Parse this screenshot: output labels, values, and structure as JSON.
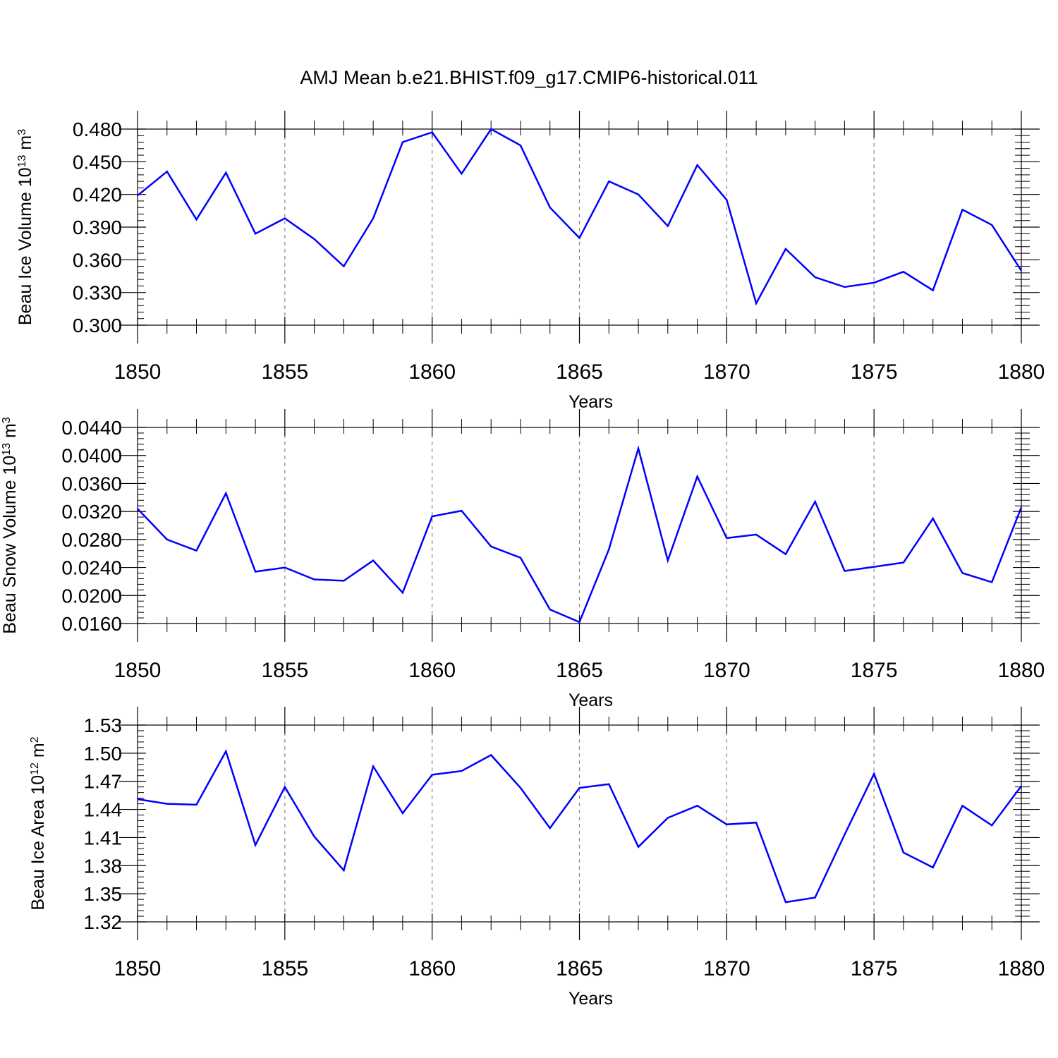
{
  "title": "AMJ Mean b.e21.BHIST.f09_g17.CMIP6-historical.011",
  "line_color": "#0000ff",
  "chart_data": [
    {
      "type": "line",
      "ylabel": "Beau Ice Volume 10",
      "ylabel_exp": "13",
      "ylabel_unit": " m",
      "ylabel_unit_exp": "3",
      "xlabel": "Years",
      "xlim": [
        1850,
        1880
      ],
      "ylim": [
        0.3,
        0.48
      ],
      "y_ticks": [
        "0.300",
        "0.330",
        "0.360",
        "0.390",
        "0.420",
        "0.450",
        "0.480"
      ],
      "x_ticks": [
        "1850",
        "1855",
        "1860",
        "1865",
        "1870",
        "1875",
        "1880"
      ],
      "x": [
        1850,
        1851,
        1852,
        1853,
        1854,
        1855,
        1856,
        1857,
        1858,
        1859,
        1860,
        1861,
        1862,
        1863,
        1864,
        1865,
        1866,
        1867,
        1868,
        1869,
        1870,
        1871,
        1872,
        1873,
        1874,
        1875,
        1876,
        1877,
        1878,
        1879,
        1880
      ],
      "series": [
        {
          "values": [
            0.419,
            0.441,
            0.397,
            0.44,
            0.384,
            0.398,
            0.379,
            0.354,
            0.398,
            0.468,
            0.477,
            0.439,
            0.48,
            0.465,
            0.408,
            0.38,
            0.432,
            0.42,
            0.391,
            0.447,
            0.415,
            0.32,
            0.37,
            0.344,
            0.335,
            0.339,
            0.349,
            0.332,
            0.406,
            0.392,
            0.35
          ]
        }
      ]
    },
    {
      "type": "line",
      "ylabel": "Beau Snow Volume 10",
      "ylabel_exp": "13",
      "ylabel_unit": " m",
      "ylabel_unit_exp": "3",
      "xlabel": "Years",
      "xlim": [
        1850,
        1880
      ],
      "ylim": [
        0.016,
        0.044
      ],
      "y_ticks": [
        "0.0160",
        "0.0200",
        "0.0240",
        "0.0280",
        "0.0320",
        "0.0360",
        "0.0400",
        "0.0440"
      ],
      "x_ticks": [
        "1850",
        "1855",
        "1860",
        "1865",
        "1870",
        "1875",
        "1880"
      ],
      "x": [
        1850,
        1851,
        1852,
        1853,
        1854,
        1855,
        1856,
        1857,
        1858,
        1859,
        1860,
        1861,
        1862,
        1863,
        1864,
        1865,
        1866,
        1867,
        1868,
        1869,
        1870,
        1871,
        1872,
        1873,
        1874,
        1875,
        1876,
        1877,
        1878,
        1879,
        1880
      ],
      "series": [
        {
          "values": [
            0.0324,
            0.028,
            0.0264,
            0.0346,
            0.0234,
            0.024,
            0.0223,
            0.0221,
            0.025,
            0.0204,
            0.0313,
            0.0321,
            0.027,
            0.0254,
            0.018,
            0.0162,
            0.0266,
            0.041,
            0.025,
            0.037,
            0.0282,
            0.0287,
            0.0259,
            0.0334,
            0.0235,
            0.0241,
            0.0247,
            0.031,
            0.0232,
            0.0219,
            0.0326
          ]
        }
      ]
    },
    {
      "type": "line",
      "ylabel": "Beau Ice Area 10",
      "ylabel_exp": "12",
      "ylabel_unit": " m",
      "ylabel_unit_exp": "2",
      "xlabel": "Years",
      "xlim": [
        1850,
        1880
      ],
      "ylim": [
        1.32,
        1.53
      ],
      "y_ticks": [
        "1.32",
        "1.35",
        "1.38",
        "1.41",
        "1.44",
        "1.47",
        "1.50",
        "1.53"
      ],
      "x_ticks": [
        "1850",
        "1855",
        "1860",
        "1865",
        "1870",
        "1875",
        "1880"
      ],
      "x": [
        1850,
        1851,
        1852,
        1853,
        1854,
        1855,
        1856,
        1857,
        1858,
        1859,
        1860,
        1861,
        1862,
        1863,
        1864,
        1865,
        1866,
        1867,
        1868,
        1869,
        1870,
        1871,
        1872,
        1873,
        1874,
        1875,
        1876,
        1877,
        1878,
        1879,
        1880
      ],
      "series": [
        {
          "values": [
            1.451,
            1.446,
            1.445,
            1.502,
            1.402,
            1.464,
            1.411,
            1.375,
            1.486,
            1.436,
            1.477,
            1.481,
            1.498,
            1.463,
            1.42,
            1.463,
            1.467,
            1.4,
            1.431,
            1.444,
            1.424,
            1.426,
            1.341,
            1.346,
            1.413,
            1.478,
            1.394,
            1.378,
            1.444,
            1.423,
            1.465
          ]
        }
      ]
    }
  ]
}
